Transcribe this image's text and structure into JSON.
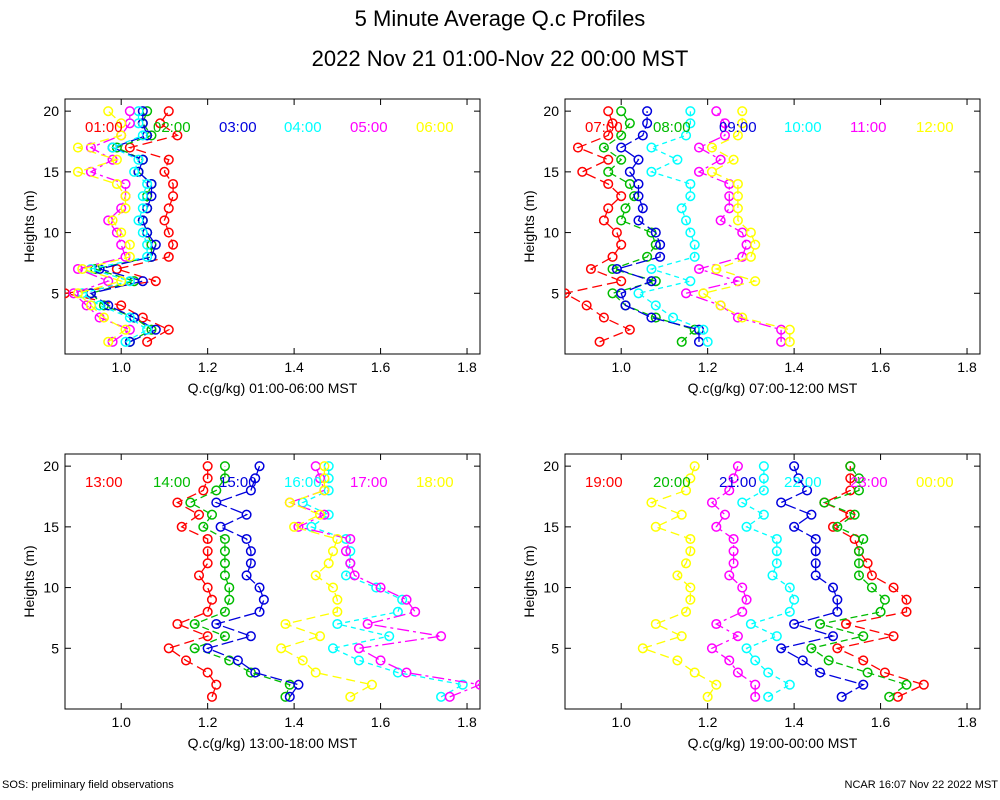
{
  "title": "5 Minute Average Q.c Profiles",
  "subtitle": "2022 Nov 21 01:00-Nov 22 00:00 MST",
  "footer_left": "SOS: preliminary field observations",
  "footer_right": "NCAR 16:07 Nov 22 2022 MST",
  "colors": [
    "#ff0000",
    "#00bb00",
    "#0000dd",
    "#00ffff",
    "#ff00ff",
    "#ffff00"
  ],
  "chart_data": [
    {
      "type": "line",
      "xlabel": "Q.c(g/kg) 01:00-06:00 MST",
      "ylabel": "Heights (m)",
      "xlim": [
        0.87,
        1.83
      ],
      "ylim": [
        0,
        21
      ],
      "xticks": [
        "1.0",
        "1.2",
        "1.4",
        "1.6",
        "1.8"
      ],
      "yticks": [
        "5",
        "10",
        "15",
        "20"
      ],
      "heights": [
        1,
        2,
        3,
        4,
        5,
        6,
        7,
        8,
        9,
        10,
        11,
        12,
        13,
        14,
        15,
        16,
        17,
        18,
        19,
        20
      ],
      "series": [
        {
          "name": "01:00",
          "values": [
            1.06,
            1.11,
            1.05,
            1.0,
            0.87,
            1.08,
            0.99,
            1.11,
            1.12,
            1.11,
            1.1,
            1.11,
            1.12,
            1.12,
            1.1,
            1.11,
            1.02,
            1.13,
            1.09,
            1.11
          ]
        },
        {
          "name": "02:00",
          "values": [
            1.02,
            1.07,
            1.03,
            0.96,
            0.93,
            1.03,
            0.94,
            1.07,
            1.07,
            1.06,
            1.05,
            1.06,
            1.06,
            1.07,
            1.04,
            1.05,
            0.99,
            1.07,
            1.05,
            1.06
          ]
        },
        {
          "name": "03:00",
          "values": [
            1.02,
            1.08,
            1.03,
            0.97,
            0.93,
            1.05,
            0.95,
            1.07,
            1.08,
            1.06,
            1.05,
            1.06,
            1.07,
            1.07,
            1.04,
            1.05,
            0.98,
            1.06,
            1.05,
            1.05
          ]
        },
        {
          "name": "04:00",
          "values": [
            1.01,
            1.06,
            1.02,
            0.95,
            0.91,
            1.02,
            0.93,
            1.06,
            1.06,
            1.05,
            1.04,
            1.05,
            1.05,
            1.06,
            1.03,
            1.04,
            0.98,
            1.05,
            1.04,
            1.04
          ]
        },
        {
          "name": "05:00",
          "values": [
            0.98,
            1.02,
            0.95,
            0.92,
            0.89,
            0.97,
            0.9,
            1.01,
            1.0,
            0.99,
            0.97,
            1.0,
            1.01,
            1.01,
            0.93,
            0.98,
            0.93,
            1.0,
            1.02,
            1.02
          ]
        },
        {
          "name": "06:00",
          "values": [
            0.97,
            1.01,
            0.96,
            0.93,
            0.9,
            1.0,
            0.91,
            1.02,
            1.02,
            1.0,
            0.98,
            1.01,
            1.01,
            0.99,
            0.9,
            0.99,
            0.9,
            1.0,
            1.0,
            0.97
          ]
        }
      ]
    },
    {
      "type": "line",
      "xlabel": "Q.c(g/kg) 07:00-12:00 MST",
      "ylabel": "Heights (m)",
      "xlim": [
        0.87,
        1.83
      ],
      "ylim": [
        0,
        21
      ],
      "xticks": [
        "1.0",
        "1.2",
        "1.4",
        "1.6",
        "1.8"
      ],
      "yticks": [
        "5",
        "10",
        "15",
        "20"
      ],
      "heights": [
        1,
        2,
        3,
        4,
        5,
        6,
        7,
        8,
        9,
        10,
        11,
        12,
        13,
        14,
        15,
        16,
        17,
        18,
        19,
        20
      ],
      "series": [
        {
          "name": "07:00",
          "values": [
            0.95,
            1.02,
            0.96,
            0.92,
            0.87,
            1.0,
            0.93,
            0.98,
            1.0,
            0.99,
            0.96,
            0.97,
            1.0,
            0.97,
            0.91,
            0.97,
            0.9,
            0.97,
            0.98,
            0.97
          ]
        },
        {
          "name": "08:00",
          "values": [
            1.14,
            1.17,
            1.08,
            1.01,
            0.98,
            1.08,
            0.98,
            1.06,
            1.08,
            1.07,
            1.0,
            1.01,
            1.03,
            1.02,
            0.97,
            1.0,
            0.96,
            1.0,
            1.02,
            1.0
          ]
        },
        {
          "name": "09:00",
          "values": [
            1.18,
            1.18,
            1.07,
            1.01,
            1.0,
            1.07,
            0.99,
            1.09,
            1.09,
            1.08,
            1.04,
            1.05,
            1.04,
            1.04,
            1.02,
            1.04,
            1.0,
            1.05,
            1.06,
            1.06
          ]
        },
        {
          "name": "10:00",
          "values": [
            1.2,
            1.19,
            1.12,
            1.08,
            1.04,
            1.16,
            1.07,
            1.17,
            1.17,
            1.16,
            1.15,
            1.14,
            1.16,
            1.16,
            1.07,
            1.13,
            1.07,
            1.15,
            1.16,
            1.16
          ]
        },
        {
          "name": "11:00",
          "values": [
            1.37,
            1.37,
            1.27,
            1.23,
            1.15,
            1.27,
            1.18,
            1.28,
            1.29,
            1.28,
            1.23,
            1.25,
            1.25,
            1.25,
            1.18,
            1.23,
            1.18,
            1.24,
            1.24,
            1.22
          ]
        },
        {
          "name": "12:00",
          "values": [
            1.39,
            1.39,
            1.28,
            1.23,
            1.19,
            1.31,
            1.22,
            1.3,
            1.31,
            1.3,
            1.27,
            1.27,
            1.27,
            1.27,
            1.21,
            1.26,
            1.21,
            1.27,
            1.28,
            1.28
          ]
        }
      ]
    },
    {
      "type": "line",
      "xlabel": "Q.c(g/kg) 13:00-18:00 MST",
      "ylabel": "Heights (m)",
      "xlim": [
        0.87,
        1.83
      ],
      "ylim": [
        0,
        21
      ],
      "xticks": [
        "1.0",
        "1.2",
        "1.4",
        "1.6",
        "1.8"
      ],
      "yticks": [
        "5",
        "10",
        "15",
        "20"
      ],
      "heights": [
        1,
        2,
        3,
        4,
        5,
        6,
        7,
        8,
        9,
        10,
        11,
        12,
        13,
        14,
        15,
        16,
        17,
        18,
        19,
        20
      ],
      "series": [
        {
          "name": "13:00",
          "values": [
            1.21,
            1.22,
            1.2,
            1.15,
            1.11,
            1.2,
            1.13,
            1.2,
            1.21,
            1.2,
            1.18,
            1.2,
            1.2,
            1.2,
            1.14,
            1.18,
            1.13,
            1.19,
            1.2,
            1.2
          ]
        },
        {
          "name": "14:00",
          "values": [
            1.38,
            1.39,
            1.3,
            1.25,
            1.17,
            1.24,
            1.17,
            1.24,
            1.25,
            1.25,
            1.24,
            1.24,
            1.24,
            1.24,
            1.19,
            1.21,
            1.16,
            1.22,
            1.24,
            1.24
          ]
        },
        {
          "name": "15:00",
          "values": [
            1.39,
            1.41,
            1.31,
            1.27,
            1.2,
            1.3,
            1.22,
            1.32,
            1.33,
            1.32,
            1.29,
            1.3,
            1.3,
            1.29,
            1.23,
            1.29,
            1.22,
            1.3,
            1.31,
            1.32
          ]
        },
        {
          "name": "16:00",
          "values": [
            1.74,
            1.79,
            1.64,
            1.55,
            1.49,
            1.62,
            1.5,
            1.64,
            1.65,
            1.59,
            1.52,
            1.53,
            1.53,
            1.52,
            1.44,
            1.48,
            1.42,
            1.48,
            1.48,
            1.48
          ]
        },
        {
          "name": "17:00",
          "values": [
            1.76,
            1.83,
            1.66,
            1.6,
            1.55,
            1.74,
            1.57,
            1.68,
            1.66,
            1.6,
            1.54,
            1.53,
            1.52,
            1.53,
            1.41,
            1.47,
            1.39,
            1.47,
            1.46,
            1.45
          ]
        },
        {
          "name": "18:00",
          "values": [
            1.53,
            1.58,
            1.45,
            1.42,
            1.37,
            1.46,
            1.38,
            1.5,
            1.5,
            1.49,
            1.45,
            1.48,
            1.49,
            1.5,
            1.4,
            1.46,
            1.39,
            1.47,
            1.47,
            1.47
          ]
        }
      ]
    },
    {
      "type": "line",
      "xlabel": "Q.c(g/kg) 19:00-00:00 MST",
      "ylabel": "Heights (m)",
      "xlim": [
        0.87,
        1.83
      ],
      "ylim": [
        0,
        21
      ],
      "xticks": [
        "1.0",
        "1.2",
        "1.4",
        "1.6",
        "1.8"
      ],
      "yticks": [
        "5",
        "10",
        "15",
        "20"
      ],
      "heights": [
        1,
        2,
        3,
        4,
        5,
        6,
        7,
        8,
        9,
        10,
        11,
        12,
        13,
        14,
        15,
        16,
        17,
        18,
        19,
        20
      ],
      "series": [
        {
          "name": "19:00",
          "values": [
            1.64,
            1.7,
            1.61,
            1.56,
            1.5,
            1.63,
            1.52,
            1.66,
            1.66,
            1.63,
            1.58,
            1.57,
            1.55,
            1.54,
            1.49,
            1.53,
            1.47,
            1.53,
            1.53,
            1.53
          ]
        },
        {
          "name": "20:00",
          "values": [
            1.62,
            1.66,
            1.57,
            1.48,
            1.44,
            1.56,
            1.46,
            1.6,
            1.61,
            1.58,
            1.55,
            1.55,
            1.55,
            1.56,
            1.5,
            1.54,
            1.47,
            1.55,
            1.55,
            1.53
          ]
        },
        {
          "name": "21:00",
          "values": [
            1.51,
            1.56,
            1.46,
            1.42,
            1.37,
            1.49,
            1.4,
            1.5,
            1.5,
            1.49,
            1.45,
            1.45,
            1.45,
            1.45,
            1.4,
            1.44,
            1.37,
            1.43,
            1.41,
            1.4
          ]
        },
        {
          "name": "22:00",
          "values": [
            1.34,
            1.39,
            1.34,
            1.31,
            1.29,
            1.36,
            1.3,
            1.39,
            1.4,
            1.39,
            1.35,
            1.36,
            1.36,
            1.36,
            1.29,
            1.33,
            1.28,
            1.33,
            1.33,
            1.33
          ]
        },
        {
          "name": "23:00",
          "values": [
            1.31,
            1.31,
            1.27,
            1.25,
            1.21,
            1.27,
            1.22,
            1.28,
            1.29,
            1.28,
            1.25,
            1.26,
            1.26,
            1.26,
            1.22,
            1.24,
            1.21,
            1.25,
            1.26,
            1.27
          ]
        },
        {
          "name": "00:00",
          "values": [
            1.2,
            1.22,
            1.17,
            1.13,
            1.05,
            1.14,
            1.08,
            1.15,
            1.16,
            1.16,
            1.13,
            1.15,
            1.16,
            1.16,
            1.08,
            1.14,
            1.07,
            1.15,
            1.16,
            1.17
          ]
        }
      ]
    }
  ]
}
